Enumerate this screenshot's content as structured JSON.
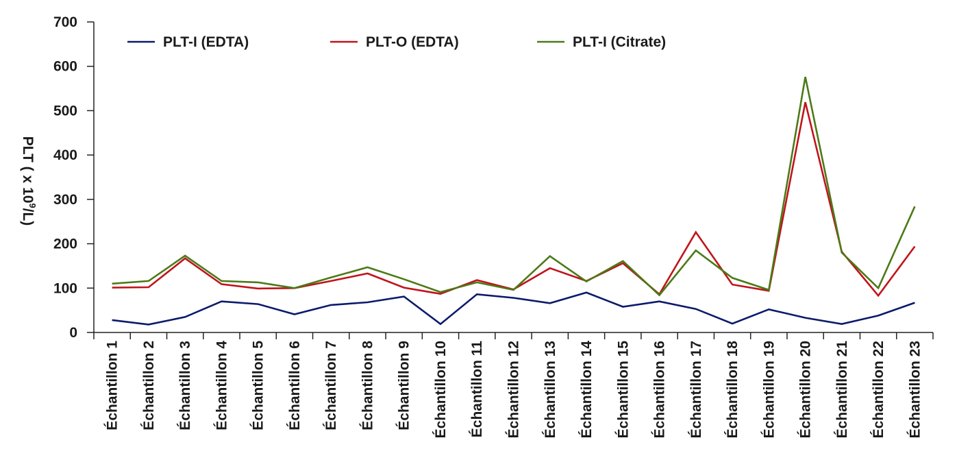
{
  "chart_data": {
    "type": "line",
    "ylabel_parts": [
      "PLT ( x 10",
      "9",
      "/L)"
    ],
    "ylim": [
      0,
      700
    ],
    "yticks": [
      0,
      100,
      200,
      300,
      400,
      500,
      600,
      700
    ],
    "grid": false,
    "legend_position": "top",
    "categories": [
      "Échantillon 1",
      "Échantillon 2",
      "Échantillon 3",
      "Échantillon 4",
      "Échantillon 5",
      "Échantillon 6",
      "Échantillon 7",
      "Échantillon 8",
      "Échantillon 9",
      "Échantillon 10",
      "Échantillon 11",
      "Échantillon 12",
      "Échantillon 13",
      "Échantillon 14",
      "Échantillon 15",
      "Échantillon 16",
      "Échantillon 17",
      "Échantillon 18",
      "Échantillon 19",
      "Échantillon 20",
      "Échantillon 21",
      "Échantillon 22",
      "Échantillon 23"
    ],
    "series": [
      {
        "name": "PLT-I (EDTA)",
        "color": "#0b1a6b",
        "values": [
          28,
          18,
          35,
          70,
          64,
          41,
          62,
          68,
          81,
          19,
          86,
          78,
          66,
          90,
          58,
          70,
          53,
          20,
          52,
          33,
          19,
          38,
          67
        ]
      },
      {
        "name": "PLT-O (EDTA)",
        "color": "#c0141b",
        "values": [
          101,
          102,
          167,
          109,
          99,
          100,
          116,
          133,
          101,
          87,
          118,
          97,
          145,
          116,
          156,
          86,
          226,
          108,
          94,
          519,
          182,
          83,
          194
        ]
      },
      {
        "name": "PLT-I (Citrate)",
        "color": "#4b7a17",
        "values": [
          110,
          116,
          173,
          116,
          113,
          100,
          124,
          147,
          120,
          91,
          113,
          96,
          172,
          115,
          161,
          84,
          185,
          123,
          96,
          576,
          180,
          100,
          284
        ]
      }
    ]
  }
}
